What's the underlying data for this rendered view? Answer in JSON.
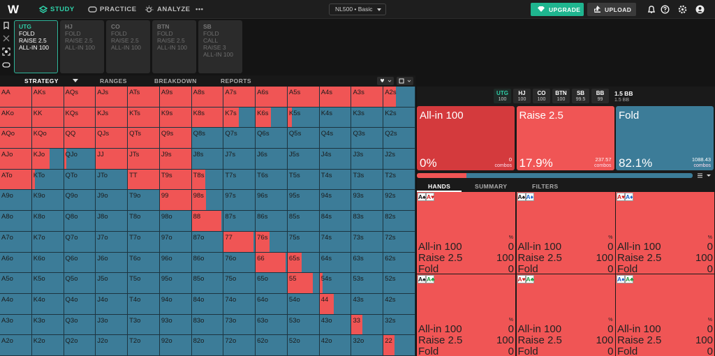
{
  "nav": {
    "logo": "W",
    "tabs": [
      "STUDY",
      "PRACTICE",
      "ANALYZE",
      "•••"
    ],
    "game": "NL500 • Basic",
    "upgrade": "UPGRADE",
    "upload": "UPLOAD"
  },
  "action_path": [
    {
      "position": "UTG",
      "actions": [
        "FOLD",
        "RAISE 2.5",
        "ALL-IN 100"
      ]
    },
    {
      "position": "HJ",
      "actions": [
        "FOLD",
        "RAISE 2.5",
        "ALL-IN 100"
      ]
    },
    {
      "position": "CO",
      "actions": [
        "FOLD",
        "RAISE 2.5",
        "ALL-IN 100"
      ]
    },
    {
      "position": "BTN",
      "actions": [
        "FOLD",
        "RAISE 2.5",
        "ALL-IN 100"
      ]
    },
    {
      "position": "SB",
      "actions": [
        "FOLD",
        "CALL",
        "RAISE 3",
        "ALL-IN 100"
      ]
    }
  ],
  "strategy_tabs": [
    "STRATEGY",
    "RANGES",
    "BREAKDOWN",
    "REPORTS"
  ],
  "range_grid": {
    "hands": [
      [
        "AA",
        "AKs",
        "AQs",
        "AJs",
        "ATs",
        "A9s",
        "A8s",
        "A7s",
        "A6s",
        "A5s",
        "A4s",
        "A3s",
        "A2s"
      ],
      [
        "AKo",
        "KK",
        "KQs",
        "KJs",
        "KTs",
        "K9s",
        "K8s",
        "K7s",
        "K6s",
        "K5s",
        "K4s",
        "K3s",
        "K2s"
      ],
      [
        "AQo",
        "KQo",
        "QQ",
        "QJs",
        "QTs",
        "Q9s",
        "Q8s",
        "Q7s",
        "Q6s",
        "Q5s",
        "Q4s",
        "Q3s",
        "Q2s"
      ],
      [
        "AJo",
        "KJo",
        "QJo",
        "JJ",
        "JTs",
        "J9s",
        "J8s",
        "J7s",
        "J6s",
        "J5s",
        "J4s",
        "J3s",
        "J2s"
      ],
      [
        "ATo",
        "KTo",
        "QTo",
        "JTo",
        "TT",
        "T9s",
        "T8s",
        "T7s",
        "T6s",
        "T5s",
        "T4s",
        "T3s",
        "T2s"
      ],
      [
        "A9o",
        "K9o",
        "Q9o",
        "J9o",
        "T9o",
        "99",
        "98s",
        "97s",
        "96s",
        "95s",
        "94s",
        "93s",
        "92s"
      ],
      [
        "A8o",
        "K8o",
        "Q8o",
        "J8o",
        "T8o",
        "98o",
        "88",
        "87s",
        "86s",
        "85s",
        "84s",
        "83s",
        "82s"
      ],
      [
        "A7o",
        "K7o",
        "Q7o",
        "J7o",
        "T7o",
        "97o",
        "87o",
        "77",
        "76s",
        "75s",
        "74s",
        "73s",
        "72s"
      ],
      [
        "A6o",
        "K6o",
        "Q6o",
        "J6o",
        "T6o",
        "96o",
        "86o",
        "76o",
        "66",
        "65s",
        "64s",
        "63s",
        "62s"
      ],
      [
        "A5o",
        "K5o",
        "Q5o",
        "J5o",
        "T5o",
        "95o",
        "85o",
        "75o",
        "65o",
        "55",
        "54s",
        "53s",
        "52s"
      ],
      [
        "A4o",
        "K4o",
        "Q4o",
        "J4o",
        "T4o",
        "94o",
        "84o",
        "74o",
        "64o",
        "54o",
        "44",
        "43s",
        "42s"
      ],
      [
        "A3o",
        "K3o",
        "Q3o",
        "J3o",
        "T3o",
        "93o",
        "83o",
        "73o",
        "63o",
        "53o",
        "43o",
        "33",
        "32s"
      ],
      [
        "A2o",
        "K2o",
        "Q2o",
        "J2o",
        "T2o",
        "92o",
        "82o",
        "72o",
        "62o",
        "52o",
        "42o",
        "32o",
        "22"
      ]
    ],
    "raise_frequency": [
      [
        100,
        100,
        100,
        100,
        100,
        100,
        100,
        100,
        100,
        100,
        100,
        100,
        40
      ],
      [
        100,
        100,
        100,
        100,
        100,
        100,
        100,
        48,
        48,
        13,
        0,
        0,
        0
      ],
      [
        100,
        100,
        100,
        100,
        100,
        100,
        0,
        0,
        0,
        0,
        0,
        0,
        0
      ],
      [
        100,
        57,
        8,
        100,
        100,
        100,
        0,
        0,
        0,
        0,
        0,
        0,
        0
      ],
      [
        100,
        10,
        0,
        0,
        100,
        100,
        43,
        0,
        0,
        0,
        0,
        0,
        0
      ],
      [
        0,
        0,
        0,
        0,
        0,
        100,
        45,
        0,
        0,
        0,
        0,
        0,
        0
      ],
      [
        0,
        0,
        0,
        0,
        0,
        0,
        95,
        0,
        0,
        0,
        0,
        0,
        0
      ],
      [
        0,
        0,
        0,
        0,
        0,
        0,
        0,
        95,
        45,
        0,
        0,
        0,
        0
      ],
      [
        0,
        0,
        0,
        0,
        0,
        0,
        0,
        0,
        95,
        45,
        0,
        0,
        0
      ],
      [
        0,
        0,
        0,
        0,
        0,
        0,
        0,
        0,
        0,
        80,
        10,
        0,
        0
      ],
      [
        0,
        0,
        0,
        0,
        0,
        0,
        0,
        0,
        0,
        0,
        45,
        0,
        0
      ],
      [
        0,
        0,
        0,
        0,
        0,
        0,
        0,
        0,
        0,
        0,
        0,
        35,
        0
      ],
      [
        0,
        0,
        0,
        0,
        0,
        0,
        0,
        0,
        0,
        0,
        0,
        0,
        35
      ]
    ]
  },
  "stacks": [
    {
      "position": "UTG",
      "stack": 100
    },
    {
      "position": "HJ",
      "stack": 100
    },
    {
      "position": "CO",
      "stack": 100
    },
    {
      "position": "BTN",
      "stack": 100
    },
    {
      "position": "SB",
      "stack": 99.5
    },
    {
      "position": "BB",
      "stack": 99
    }
  ],
  "pot": "1.5 BB",
  "pot_sub": "1.5 BB",
  "summary": [
    {
      "action": "All-in 100",
      "frequency": 0,
      "frequency_label": "0%",
      "combos": 0
    },
    {
      "action": "Raise 2.5",
      "frequency": 17.9,
      "frequency_label": "17.9%",
      "combos": 237.57
    },
    {
      "action": "Fold",
      "frequency": 82.1,
      "frequency_label": "82.1%",
      "combos": 1088.43
    }
  ],
  "combos_unit": "combos",
  "hands_tabs": [
    "HANDS",
    "SUMMARY",
    "FILTERS"
  ],
  "combo_unit": "%",
  "combos": [
    {
      "cards": [
        "A♠",
        "A♥"
      ],
      "values": [
        0,
        100,
        0
      ]
    },
    {
      "cards": [
        "A♠",
        "A♦"
      ],
      "values": [
        0,
        100,
        0
      ]
    },
    {
      "cards": [
        "A♥",
        "A♦"
      ],
      "values": [
        0,
        100,
        0
      ]
    },
    {
      "cards": [
        "A♠",
        "A♣"
      ],
      "values": [
        0,
        100,
        0
      ]
    },
    {
      "cards": [
        "A♥",
        "A♣"
      ],
      "values": [
        0,
        100,
        0
      ]
    },
    {
      "cards": [
        "A♦",
        "A♣"
      ],
      "values": [
        0,
        100,
        0
      ]
    }
  ]
}
